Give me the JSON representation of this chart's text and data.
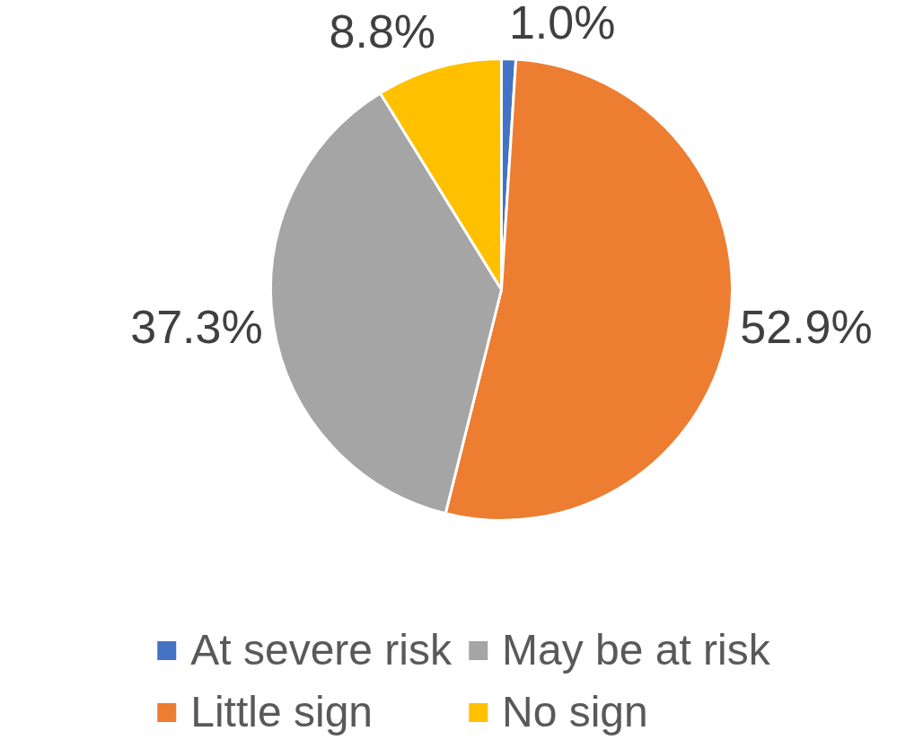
{
  "chart_data": {
    "type": "pie",
    "categories": [
      "At severe risk",
      "Little sign",
      "May be at risk",
      "No sign"
    ],
    "values": [
      1.0,
      52.9,
      37.3,
      8.8
    ],
    "colors": [
      "#4472c4",
      "#ed7d31",
      "#a5a5a5",
      "#ffc000"
    ],
    "value_labels": [
      "1.0%",
      "52.9%",
      "37.3%",
      "8.8%"
    ],
    "legend": "bottom"
  }
}
